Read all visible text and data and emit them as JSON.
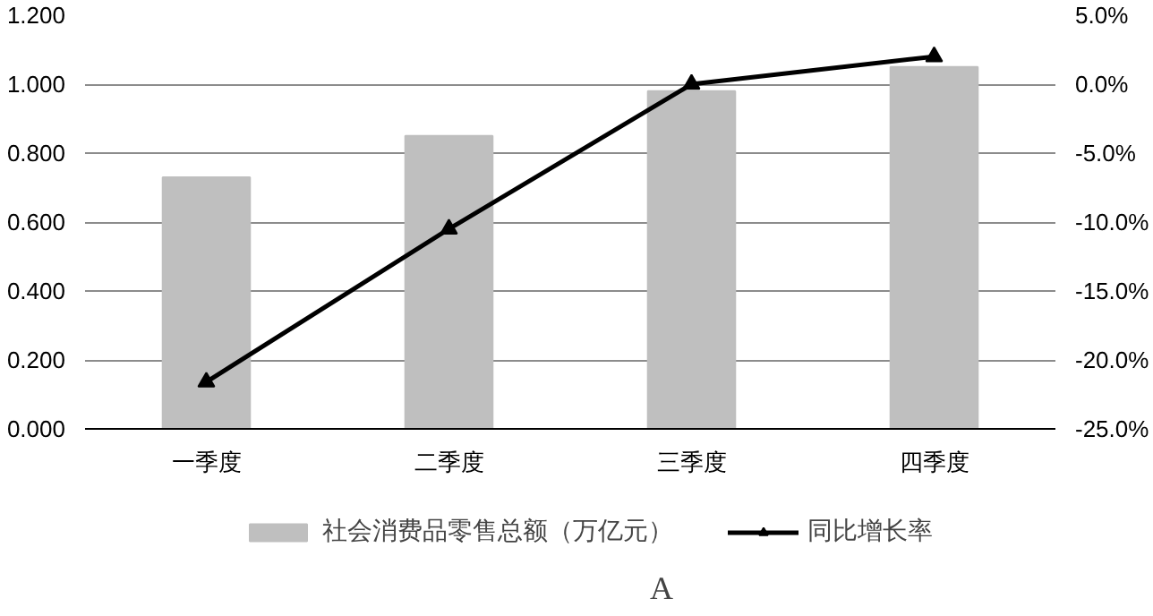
{
  "chart_data": {
    "type": "bar",
    "categories": [
      "一季度",
      "二季度",
      "三季度",
      "四季度"
    ],
    "series": [
      {
        "name": "社会消费品零售总额（万亿元）",
        "color": "#bfbfbf",
        "values": [
          0.73,
          0.85,
          0.98,
          1.05
        ]
      },
      {
        "name": "同比增长率",
        "type": "line",
        "color": "#000000",
        "axis": "y2",
        "marker": "triangle",
        "line_style": "solid",
        "values": [
          -21.6,
          -10.5,
          0.0,
          2.0
        ]
      }
    ],
    "ylim": [
      0,
      1.2
    ],
    "yticks": [
      {
        "value": 0,
        "label": "0.000"
      },
      {
        "value": 0.2,
        "label": "0.200"
      },
      {
        "value": 0.4,
        "label": "0.400"
      },
      {
        "value": 0.6,
        "label": "0.600"
      },
      {
        "value": 0.8,
        "label": "0.800"
      },
      {
        "value": 1.0,
        "label": "1.000"
      },
      {
        "value": 1.2,
        "label": "1.200"
      }
    ],
    "y2lim": [
      -25,
      5
    ],
    "y2ticks": [
      {
        "value": -25,
        "label": "-25.0%"
      },
      {
        "value": -20,
        "label": "-20.0%"
      },
      {
        "value": -15,
        "label": "-15.0%"
      },
      {
        "value": -10,
        "label": "-10.0%"
      },
      {
        "value": -5,
        "label": "-5.0%"
      },
      {
        "value": 0,
        "label": "0.0%"
      },
      {
        "value": 5,
        "label": "5.0%"
      }
    ],
    "grid": "y",
    "legend": "bottom",
    "annotations": [
      "A"
    ]
  }
}
